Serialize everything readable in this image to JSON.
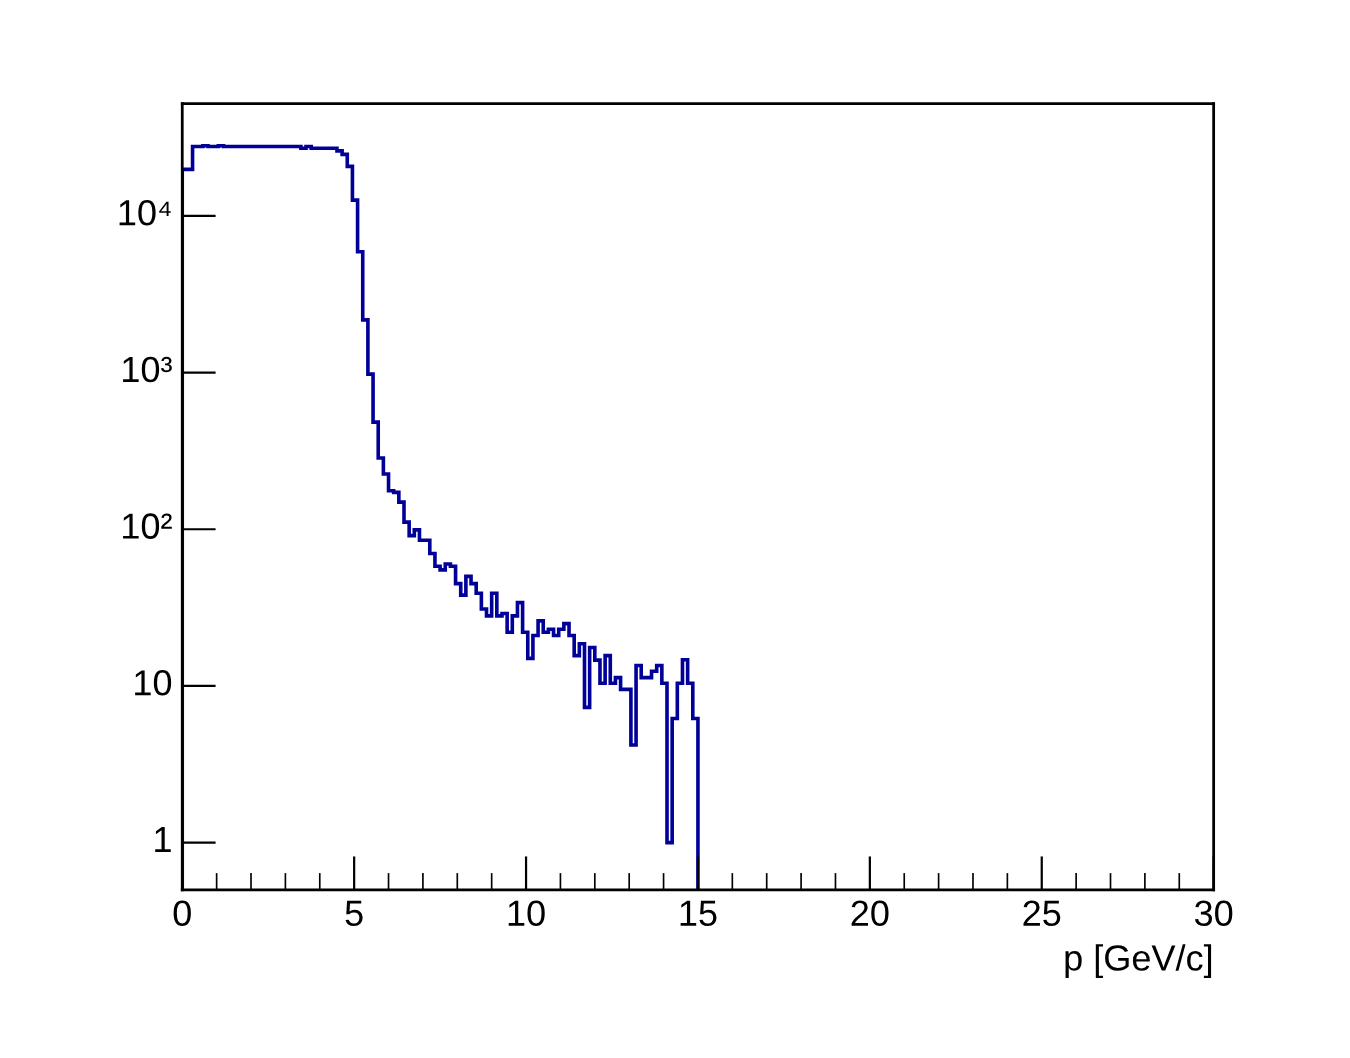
{
  "chart_data": {
    "type": "histogram",
    "xlabel": "p [GeV/c]",
    "color": "#000099",
    "bins": [
      0,
      0.15,
      0.3,
      0.45,
      0.6,
      0.75,
      0.9,
      1.05,
      1.2,
      1.35,
      1.5,
      1.65,
      1.8,
      1.95,
      2.1,
      2.25,
      2.4,
      2.55,
      2.7,
      2.85,
      3,
      3.15,
      3.3,
      3.45,
      3.6,
      3.75,
      3.9,
      4.05,
      4.2,
      4.35,
      4.5,
      4.65,
      4.8,
      4.95,
      5.1,
      5.25,
      5.4,
      5.55,
      5.7,
      5.85,
      6,
      6.15,
      6.3,
      6.45,
      6.6,
      6.75,
      6.9,
      7.05,
      7.2,
      7.35,
      7.5,
      7.65,
      7.8,
      7.95,
      8.1,
      8.25,
      8.4,
      8.55,
      8.7,
      8.85,
      9,
      9.15,
      9.3,
      9.45,
      9.6,
      9.75,
      9.9,
      10.05,
      10.2,
      10.35,
      10.5,
      10.65,
      10.8,
      10.95,
      11.1,
      11.25,
      11.4,
      11.55,
      11.7,
      11.85,
      12,
      12.15,
      12.3,
      12.45,
      12.6,
      12.75,
      12.9,
      13.05,
      13.2,
      13.35,
      13.5,
      13.65,
      13.8,
      13.95,
      14.1,
      14.25,
      14.4,
      14.55,
      14.7,
      14.85,
      15
    ],
    "values": [
      19800,
      19800,
      27700,
      27700,
      28000,
      27700,
      27700,
      28000,
      27700,
      27700,
      27700,
      27700,
      27700,
      27700,
      27700,
      27700,
      27700,
      27700,
      27700,
      27700,
      27700,
      27700,
      27700,
      27000,
      27700,
      27000,
      27000,
      27000,
      27000,
      27000,
      26000,
      24700,
      20700,
      12600,
      5900,
      2170,
      977,
      483,
      285,
      225,
      176,
      172,
      149,
      111,
      91,
      99,
      85,
      85,
      70,
      58,
      55,
      60,
      58,
      45,
      38,
      50,
      45,
      39,
      31,
      28,
      39,
      28,
      29,
      22,
      28,
      34,
      22,
      15,
      21,
      26,
      22,
      23,
      21,
      23,
      25,
      21,
      15.6,
      18.6,
      7.3,
      17.6,
      14.6,
      10.4,
      15.6,
      10.4,
      11.3,
      9.5,
      9.5,
      4.2,
      13.5,
      11.3,
      11.3,
      12.4,
      13.5,
      10.4,
      1,
      6.2,
      10.4,
      14.7,
      10.4,
      6.2
    ],
    "xlim": [
      0,
      30
    ],
    "ylim": [
      0.5,
      52000
    ],
    "log": "y",
    "xticks": [
      0,
      5,
      10,
      15,
      20,
      25,
      30
    ],
    "yticks": [
      1,
      10,
      {
        "value": 100,
        "label": "10²"
      },
      {
        "value": 1000,
        "label": "10³"
      },
      {
        "value": 10000,
        "label": "10⁴"
      }
    ],
    "grid": false
  }
}
